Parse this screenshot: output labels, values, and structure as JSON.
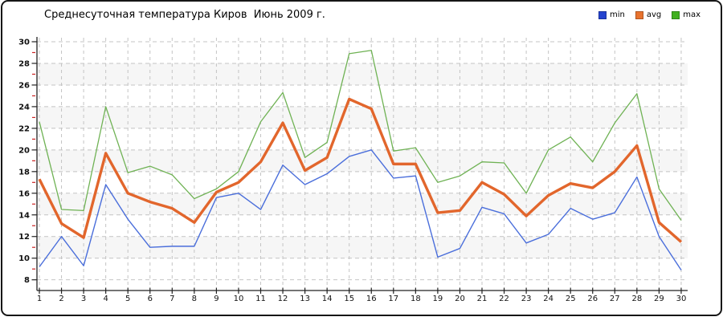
{
  "header": {
    "title": "Среднесуточная температура Киров  Июнь 2009 г."
  },
  "legend": [
    {
      "label": "min",
      "color": "#2543cf"
    },
    {
      "label": "avg",
      "color": "#e8732e"
    },
    {
      "label": "max",
      "color": "#41b01f"
    }
  ],
  "colors": {
    "grid": "#c4c4c4",
    "axis": "#222222",
    "minor_tick": "#cc2222",
    "band": "#f6f6f6",
    "tick_label": "#111111"
  },
  "chart_data": {
    "type": "line",
    "title": "Среднесуточная температура Киров  Июнь 2009 г.",
    "xlabel": "",
    "ylabel": "",
    "x": [
      1,
      2,
      3,
      4,
      5,
      6,
      7,
      8,
      9,
      10,
      11,
      12,
      13,
      14,
      15,
      16,
      17,
      18,
      19,
      20,
      21,
      22,
      23,
      24,
      25,
      26,
      27,
      28,
      29,
      30
    ],
    "y_ticks": [
      8,
      10,
      12,
      14,
      16,
      18,
      20,
      22,
      24,
      26,
      28,
      30
    ],
    "ylim": [
      8,
      30
    ],
    "grid": true,
    "legend_position": "top-right",
    "series": [
      {
        "name": "min",
        "color": "#4a6edb",
        "width": 1.4,
        "z": 2,
        "values": [
          9.2,
          12.0,
          9.3,
          16.8,
          13.6,
          11.0,
          11.1,
          11.1,
          15.6,
          16.0,
          14.5,
          18.6,
          16.8,
          17.8,
          19.4,
          20.0,
          17.4,
          17.6,
          10.1,
          10.9,
          14.7,
          14.1,
          11.4,
          12.2,
          14.6,
          13.6,
          14.2,
          17.5,
          12.0,
          8.9
        ]
      },
      {
        "name": "avg",
        "color": "#e2662c",
        "width": 3.4,
        "z": 3,
        "values": [
          17.3,
          13.2,
          11.9,
          19.7,
          16.0,
          15.2,
          14.6,
          13.3,
          16.1,
          17.0,
          18.9,
          22.5,
          18.1,
          19.3,
          24.7,
          23.8,
          18.7,
          18.7,
          14.2,
          14.4,
          17.0,
          15.9,
          13.9,
          15.8,
          16.9,
          16.5,
          18.0,
          20.4,
          13.3,
          11.5
        ]
      },
      {
        "name": "max",
        "color": "#6fb254",
        "width": 1.3,
        "z": 1,
        "values": [
          22.6,
          14.5,
          14.4,
          24.0,
          17.9,
          18.5,
          17.7,
          15.5,
          16.4,
          18.0,
          22.6,
          25.3,
          19.3,
          20.7,
          28.9,
          29.2,
          19.9,
          20.2,
          17.0,
          17.6,
          18.9,
          18.8,
          16.0,
          20.0,
          21.2,
          18.9,
          22.5,
          25.2,
          16.4,
          13.5
        ]
      }
    ]
  }
}
